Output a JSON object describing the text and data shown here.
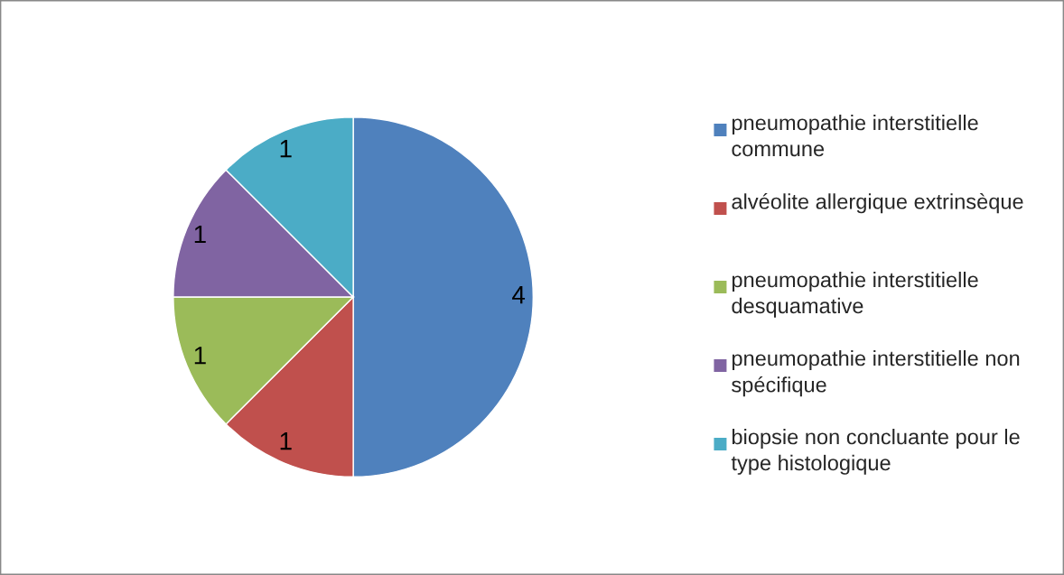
{
  "chart_data": {
    "type": "pie",
    "categories": [
      "pneumopathie interstitielle commune",
      "alvéolite allergique extrinsèque",
      "pneumopathie interstitielle desquamative",
      "pneumopathie interstitielle non spécifique",
      "biopsie non concluante pour le type histologique"
    ],
    "values": [
      4,
      1,
      1,
      1,
      1
    ],
    "colors": [
      "#4f81bd",
      "#c0504d",
      "#9bbb59",
      "#8064a2",
      "#4bacc6"
    ],
    "data_labels": true,
    "legend": "right"
  }
}
